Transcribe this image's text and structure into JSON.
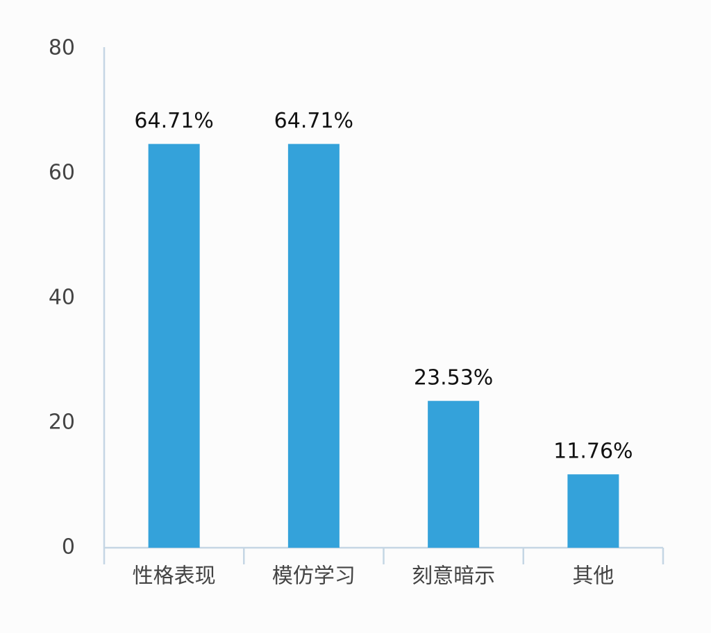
{
  "chart_data": {
    "type": "bar",
    "categories": [
      "性格表现",
      "模仿学习",
      "刻意暗示",
      "其他"
    ],
    "values": [
      64.71,
      64.71,
      23.53,
      11.76
    ],
    "value_labels": [
      "64.71%",
      "64.71%",
      "23.53%",
      "11.76%"
    ],
    "color": "#34a2da",
    "ylim": [
      0,
      80
    ],
    "yticks": [
      0,
      20,
      40,
      60,
      80
    ],
    "grid": false
  }
}
